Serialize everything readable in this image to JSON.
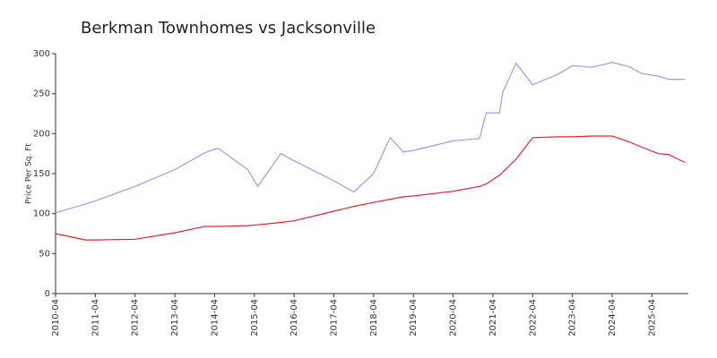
{
  "chart_data": {
    "type": "line",
    "title": "Berkman Townhomes vs Jacksonville",
    "ylabel": "Price Per Sq. Ft",
    "x": [
      "2010-04",
      "2011-01",
      "2011-04",
      "2012-04",
      "2013-04",
      "2014-01",
      "2014-05",
      "2015-02",
      "2015-05",
      "2015-12",
      "2016-04",
      "2017-04",
      "2017-10",
      "2018-04",
      "2018-09",
      "2019-01",
      "2019-04",
      "2020-04",
      "2020-12",
      "2021-02",
      "2021-06",
      "2021-07",
      "2021-11",
      "2022-04",
      "2022-12",
      "2023-04",
      "2023-10",
      "2024-04",
      "2024-09",
      "2025-01",
      "2025-06",
      "2025-09",
      "2026-02"
    ],
    "series": [
      {
        "color": "#9a9aef",
        "values": [
          101,
          112,
          116,
          134,
          155,
          176,
          182,
          155,
          134,
          175,
          166,
          141,
          127,
          150,
          195,
          177,
          179,
          191,
          194,
          226,
          226,
          252,
          288,
          261,
          275,
          285,
          283,
          289,
          284,
          275,
          272,
          268,
          268
        ]
      },
      {
        "color": "#e8202a",
        "values": [
          75,
          67,
          67,
          68,
          76,
          84,
          84,
          85,
          86,
          89,
          91,
          103,
          109,
          114,
          118,
          121,
          122,
          128,
          134,
          137,
          148,
          152,
          168,
          195,
          196,
          196,
          197,
          197,
          190,
          183,
          175,
          174,
          164
        ]
      }
    ],
    "xlim": [
      "2010-04",
      "2026-03"
    ],
    "xticks": [
      "2010-04",
      "2011-04",
      "2012-04",
      "2013-04",
      "2014-04",
      "2015-04",
      "2016-04",
      "2017-04",
      "2018-04",
      "2019-04",
      "2020-04",
      "2021-04",
      "2022-04",
      "2023-04",
      "2024-04",
      "2025-04"
    ],
    "ylim": [
      0,
      300
    ],
    "yticks": [
      0,
      50,
      100,
      150,
      200,
      250,
      300
    ],
    "grid": false
  }
}
